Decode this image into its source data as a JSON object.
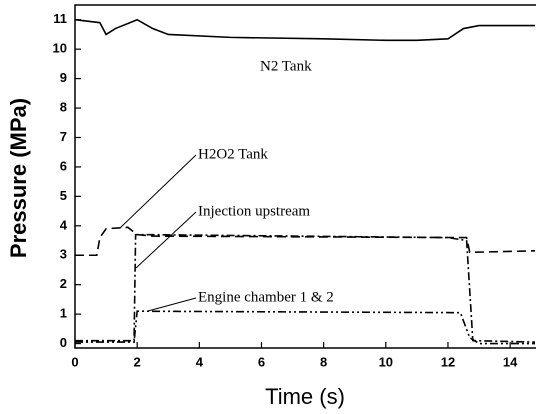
{
  "chart_data": {
    "type": "line",
    "xlabel": "Time (s)",
    "ylabel": "Pressure (MPa)",
    "xlim": [
      0,
      14.8
    ],
    "ylim": [
      -0.15,
      11.5
    ],
    "xticks": [
      0,
      2,
      4,
      6,
      8,
      10,
      12,
      14
    ],
    "yticks": [
      0,
      1,
      2,
      3,
      4,
      5,
      6,
      7,
      8,
      9,
      10,
      11
    ],
    "series": [
      {
        "name": "N2 Tank",
        "color": "#000000",
        "dash": "solid",
        "x": [
          0,
          0.8,
          1,
          1.3,
          2,
          2.5,
          3,
          5,
          8,
          10,
          11,
          12,
          12.5,
          13,
          14.8
        ],
        "values": [
          11,
          10.9,
          10.5,
          10.7,
          11,
          10.7,
          10.5,
          10.4,
          10.35,
          10.3,
          10.3,
          10.35,
          10.7,
          10.8,
          10.8
        ]
      },
      {
        "name": "H2O2 Tank",
        "color": "#000000",
        "dash": "dashed",
        "x": [
          0,
          0.7,
          0.8,
          1,
          1.7,
          2,
          2.5,
          12.6,
          12.7,
          14.8
        ],
        "values": [
          3,
          3,
          3.6,
          3.9,
          3.95,
          3.7,
          3.65,
          3.6,
          3.1,
          3.15
        ]
      },
      {
        "name": "Injection upstream",
        "color": "#000000",
        "dash": "dashdot",
        "x": [
          0,
          1.9,
          1.95,
          2.3,
          12,
          12.6,
          12.8,
          14.8
        ],
        "values": [
          0.1,
          0.1,
          3.7,
          3.7,
          3.6,
          3.5,
          0.1,
          0.05
        ]
      },
      {
        "name": "Engine chamber 1 & 2",
        "color": "#000000",
        "dash": "dashdotdot",
        "x": [
          0,
          1.9,
          2,
          12.4,
          12.7,
          13,
          14.8
        ],
        "values": [
          0.05,
          0.05,
          1.1,
          1.05,
          0.2,
          0,
          0
        ]
      }
    ]
  }
}
